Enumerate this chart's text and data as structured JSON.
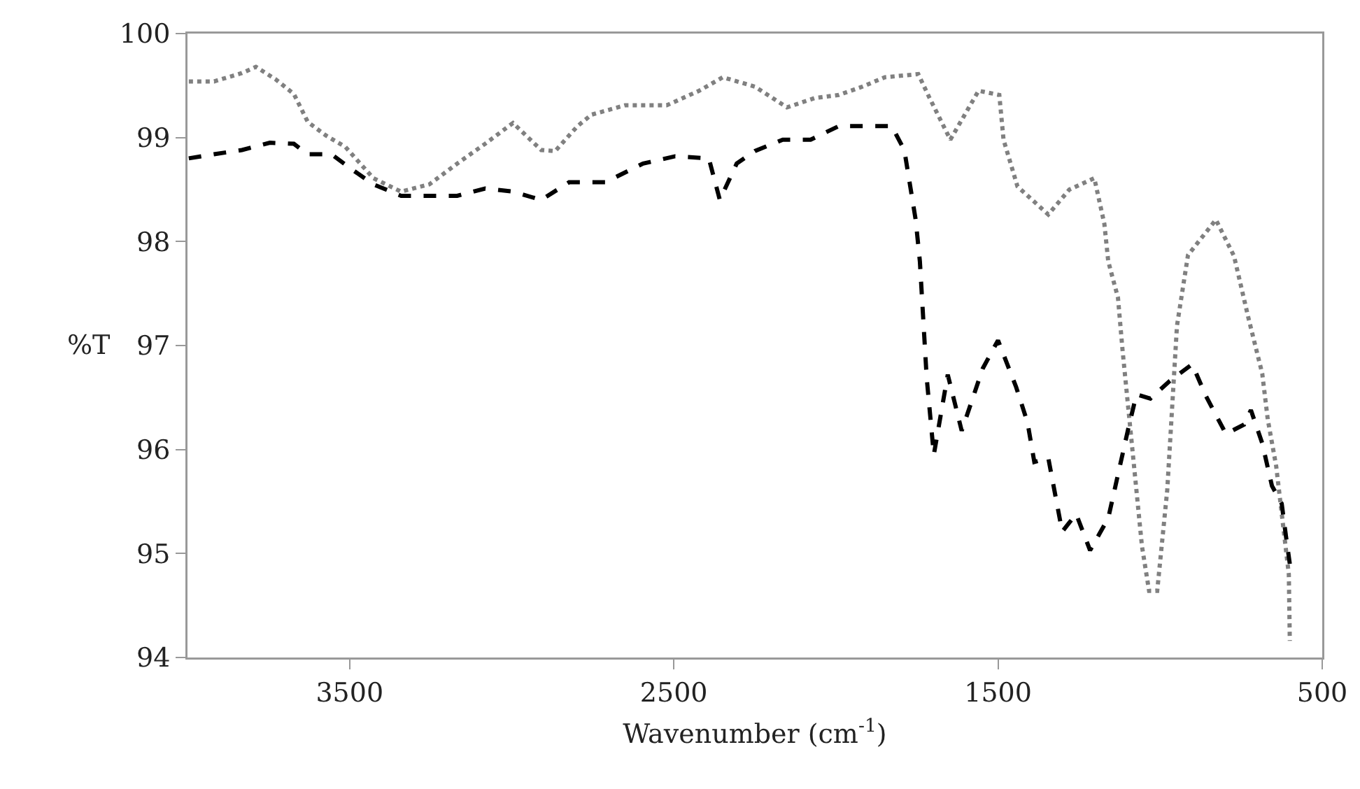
{
  "chart_data": {
    "type": "line",
    "xlabel": "Wavenumber (cm$^{-1}$)",
    "ylabel": "%T",
    "xlim": [
      4000,
      500
    ],
    "xticks": [
      3500,
      2500,
      1500,
      500
    ],
    "ylim": [
      94,
      100
    ],
    "yticks": [
      94,
      95,
      96,
      97,
      98,
      99,
      100
    ],
    "grid": false,
    "marker": "none",
    "series": [
      {
        "color": "#808080",
        "line_style": "dotted",
        "x": [
          3996,
          3918,
          3832,
          3789,
          3728,
          3672,
          3629,
          3573,
          3513,
          3427,
          3341,
          3254,
          3168,
          3082,
          2996,
          2909,
          2866,
          2797,
          2754,
          2651,
          2522,
          2422,
          2349,
          2250,
          2151,
          2065,
          1991,
          1918,
          1849,
          1746,
          1711,
          1647,
          1560,
          1496,
          1483,
          1440,
          1345,
          1280,
          1203,
          1172,
          1160,
          1130,
          1116,
          1056,
          1034,
          1009,
          978,
          948,
          914,
          828,
          772,
          728,
          685,
          668,
          642,
          603,
          600
        ],
        "values": [
          99.54,
          99.54,
          99.62,
          99.68,
          99.56,
          99.42,
          99.15,
          99.02,
          98.91,
          98.61,
          98.48,
          98.55,
          98.75,
          98.94,
          99.14,
          98.88,
          98.87,
          99.11,
          99.22,
          99.31,
          99.31,
          99.45,
          99.58,
          99.49,
          99.29,
          99.38,
          99.41,
          99.49,
          99.58,
          99.61,
          99.38,
          98.98,
          99.45,
          99.41,
          98.98,
          98.53,
          98.26,
          98.5,
          98.61,
          98.17,
          97.81,
          97.46,
          96.96,
          95.07,
          94.64,
          94.64,
          95.61,
          97.19,
          97.87,
          98.21,
          97.86,
          97.27,
          96.73,
          96.29,
          95.84,
          94.8,
          94.16
        ]
      },
      {
        "color": "#000000",
        "line_style": "dashed",
        "x": [
          3996,
          3918,
          3832,
          3746,
          3672,
          3629,
          3556,
          3500,
          3427,
          3341,
          3254,
          3168,
          3082,
          2996,
          2909,
          2823,
          2711,
          2595,
          2496,
          2392,
          2358,
          2306,
          2250,
          2164,
          2078,
          1991,
          1905,
          1828,
          1789,
          1754,
          1741,
          1720,
          1698,
          1655,
          1612,
          1547,
          1500,
          1444,
          1409,
          1388,
          1345,
          1302,
          1259,
          1216,
          1160,
          1099,
          1073,
          1030,
          970,
          901,
          858,
          797,
          741,
          720,
          685,
          655,
          625,
          612,
          600
        ],
        "values": [
          98.8,
          98.84,
          98.88,
          98.95,
          98.94,
          98.84,
          98.84,
          98.71,
          98.55,
          98.44,
          98.44,
          98.44,
          98.51,
          98.48,
          98.4,
          98.57,
          98.57,
          98.75,
          98.82,
          98.8,
          98.4,
          98.75,
          98.87,
          98.98,
          98.98,
          99.11,
          99.11,
          99.11,
          98.88,
          98.21,
          97.81,
          96.69,
          95.95,
          96.72,
          96.18,
          96.78,
          97.05,
          96.6,
          96.26,
          95.88,
          95.92,
          95.21,
          95.38,
          95.03,
          95.34,
          96.19,
          96.53,
          96.49,
          96.66,
          96.82,
          96.51,
          96.15,
          96.24,
          96.38,
          96.06,
          95.65,
          95.48,
          95.17,
          94.9
        ]
      }
    ]
  }
}
